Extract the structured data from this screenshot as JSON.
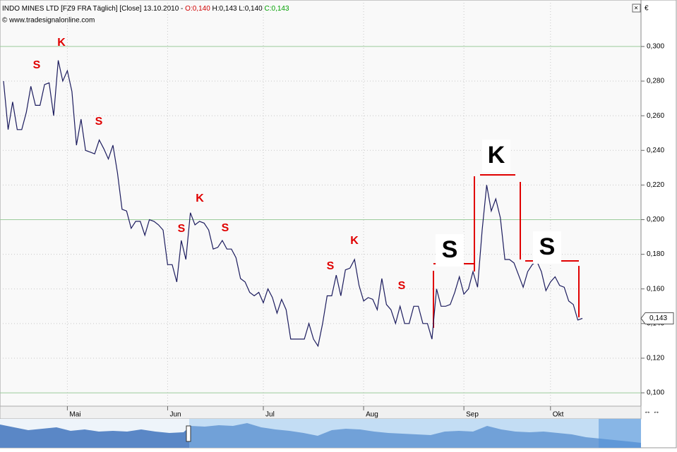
{
  "chart_data": {
    "type": "line",
    "title": "INDO MINES LTD [FZ9 FRA  Täglich] [Close] 13.10.2010 -",
    "ohlc": {
      "open": "O:0,140",
      "high": "H:0,143",
      "low": "L:0,140",
      "close": "C:0,143"
    },
    "subtitle": "© www.tradesignalonline.com",
    "last_value_label": "0,143",
    "color": "#1c1c5e",
    "categories": [
      null,
      null,
      null,
      null,
      null,
      null,
      null,
      null,
      null,
      null,
      null,
      null,
      null,
      null,
      "Mai",
      null,
      null,
      null,
      null,
      null,
      null,
      null,
      null,
      null,
      null,
      null,
      null,
      null,
      null,
      null,
      null,
      null,
      null,
      null,
      null,
      null,
      "Jun",
      null,
      null,
      null,
      null,
      null,
      null,
      null,
      null,
      null,
      null,
      null,
      null,
      null,
      null,
      null,
      null,
      null,
      null,
      null,
      null,
      "Jul",
      null,
      null,
      null,
      null,
      null,
      null,
      null,
      null,
      null,
      null,
      null,
      null,
      null,
      null,
      null,
      null,
      null,
      null,
      null,
      null,
      null,
      "Aug",
      null,
      null,
      null,
      null,
      null,
      null,
      null,
      null,
      null,
      null,
      null,
      null,
      null,
      null,
      null,
      null,
      null,
      null,
      null,
      null,
      null,
      "Sep",
      null,
      null,
      null,
      null,
      null,
      null,
      null,
      null,
      null,
      null,
      null,
      null,
      null,
      null,
      null,
      null,
      null,
      null,
      "Okt",
      null,
      null,
      null,
      null,
      null,
      null,
      null
    ],
    "values": [
      0.28,
      0.252,
      0.268,
      0.252,
      0.252,
      0.262,
      0.277,
      0.266,
      0.266,
      0.278,
      0.279,
      0.26,
      0.292,
      0.28,
      0.286,
      0.274,
      0.243,
      0.258,
      0.24,
      0.239,
      0.238,
      0.246,
      0.241,
      0.235,
      0.243,
      0.227,
      0.206,
      0.205,
      0.195,
      0.199,
      0.199,
      0.191,
      0.2,
      0.199,
      0.197,
      0.194,
      0.174,
      0.174,
      0.164,
      0.188,
      0.177,
      0.204,
      0.197,
      0.199,
      0.198,
      0.194,
      0.183,
      0.184,
      0.188,
      0.183,
      0.183,
      0.178,
      0.166,
      0.164,
      0.158,
      0.156,
      0.158,
      0.152,
      0.16,
      0.155,
      0.146,
      0.154,
      0.148,
      0.131,
      0.131,
      0.131,
      0.131,
      0.14,
      0.131,
      0.127,
      0.14,
      0.156,
      0.156,
      0.168,
      0.156,
      0.171,
      0.172,
      0.177,
      0.162,
      0.153,
      0.155,
      0.154,
      0.148,
      0.166,
      0.151,
      0.148,
      0.14,
      0.15,
      0.14,
      0.14,
      0.15,
      0.15,
      0.14,
      0.14,
      0.131,
      0.16,
      0.15,
      0.15,
      0.151,
      0.158,
      0.167,
      0.157,
      0.16,
      0.17,
      0.161,
      0.194,
      0.22,
      0.205,
      0.212,
      0.201,
      0.177,
      0.177,
      0.175,
      0.168,
      0.161,
      0.17,
      0.174,
      0.176,
      0.17,
      0.159,
      0.164,
      0.167,
      0.162,
      0.161,
      0.153,
      0.151,
      0.142,
      0.143
    ],
    "ylim": [
      0.0927,
      0.3248
    ],
    "yticks": [
      {
        "value": 0.1,
        "label": "0,100"
      },
      {
        "value": 0.12,
        "label": "0,120"
      },
      {
        "value": 0.14,
        "label": "0,140"
      },
      {
        "value": 0.16,
        "label": "0,160"
      },
      {
        "value": 0.18,
        "label": "0,180"
      },
      {
        "value": 0.2,
        "label": "0,200"
      },
      {
        "value": 0.22,
        "label": "0,220"
      },
      {
        "value": 0.24,
        "label": "0,240"
      },
      {
        "value": 0.26,
        "label": "0,260"
      },
      {
        "value": 0.28,
        "label": "0,280"
      },
      {
        "value": 0.3,
        "label": "0,300"
      }
    ],
    "grid": true,
    "annotations": [
      "S",
      "K",
      "S",
      "S",
      "K",
      "S",
      "S",
      "K",
      "S",
      "S",
      "K",
      "S"
    ]
  }
}
